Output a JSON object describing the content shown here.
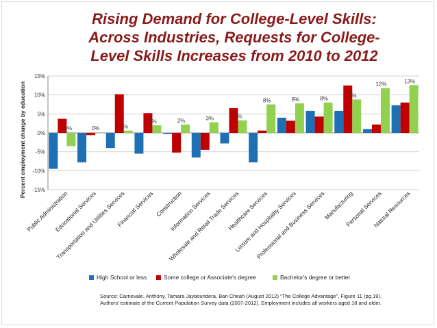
{
  "title_lines": [
    "Rising Demand for College-Level Skills:",
    "Across Industries, Requests for College-",
    "Level Skills Increases from 2010 to 2012"
  ],
  "source_lines": [
    "Source: Carnevale, Anthony, Tamara Jayasundera, Ban Cheah (August 2012) “The College Advantage”, Figure 11 (pg.19).",
    "Authors' estimate of the Current Population Survey data (2007-2012). Employment includes all workers aged 18 and older."
  ],
  "colors": {
    "high_school": "#1f6fb5",
    "some_college": "#c00000",
    "bachelors": "#92d050",
    "title": "#8b1a1a"
  },
  "chart_data": {
    "type": "bar",
    "title": "Rising Demand for College-Level Skills: Across Industries, Requests for College-Level Skills Increases from 2010 to 2012",
    "ylabel": "Percent employment change by education",
    "xlabel": "",
    "ylim": [
      -15,
      15
    ],
    "yticks": [
      15,
      10,
      5,
      0,
      -5,
      -10,
      -15
    ],
    "ytick_labels": [
      "15%",
      "10%",
      "5%",
      "0%",
      "-5%",
      "-10%",
      "-15%"
    ],
    "grid": true,
    "legend_position": "bottom",
    "categories": [
      "Public Administration",
      "Educational Services",
      "Transportation and Utilities Services",
      "Financial Services",
      "Construction",
      "Information Services",
      "Wholesale and Retail Trade Services",
      "Healthcare Services",
      "Leisure and Hospitality Services",
      "Professional and Business Services",
      "Manufacturing",
      "Personal Services",
      "Natural Resources"
    ],
    "series": [
      {
        "name": "High School or less",
        "color": "#1f6fb5",
        "values": [
          -9.5,
          -7.8,
          -4.0,
          -5.5,
          -0.3,
          -6.5,
          -2.8,
          -7.8,
          4.0,
          5.8,
          5.8,
          1.0,
          7.3
        ]
      },
      {
        "name": "Some college or Associate's degree",
        "color": "#c00000",
        "values": [
          3.7,
          -0.6,
          10.2,
          5.2,
          -5.2,
          -4.5,
          6.5,
          0.6,
          3.2,
          4.3,
          12.5,
          2.2,
          8.0
        ]
      },
      {
        "name": "Bachelor's degree or better",
        "color": "#92d050",
        "values": [
          -3.5,
          0.0,
          0.6,
          2.0,
          2.2,
          2.8,
          3.3,
          7.5,
          7.8,
          8.0,
          8.8,
          11.8,
          12.6
        ]
      }
    ],
    "data_labels": [
      "-3%",
      "0%",
      "1%",
      "2%",
      "2%",
      "3%",
      "3%",
      "8%",
      "8%",
      "8%",
      "9%",
      "12%",
      "13%"
    ]
  }
}
